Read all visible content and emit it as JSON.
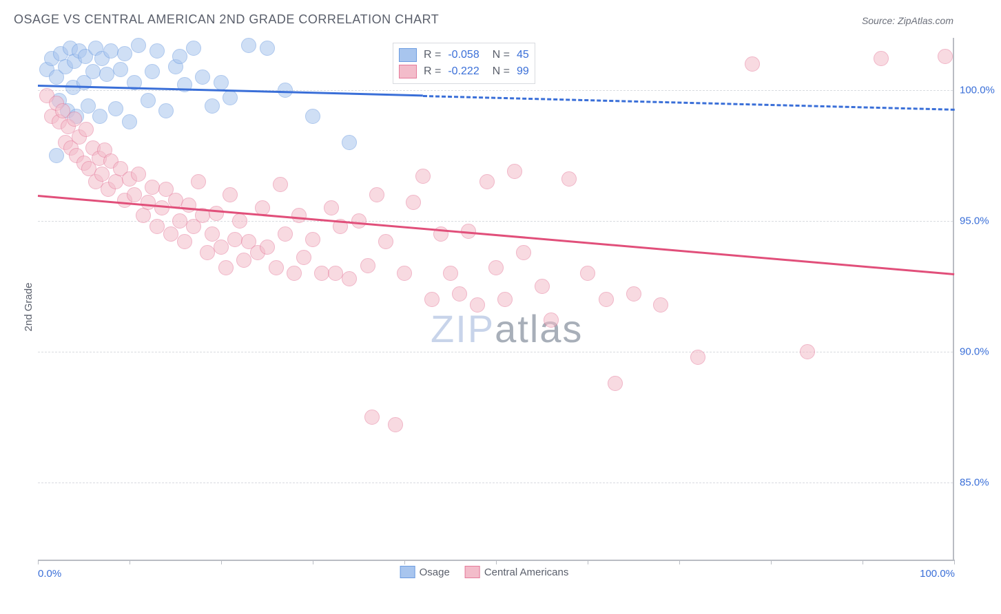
{
  "title": "OSAGE VS CENTRAL AMERICAN 2ND GRADE CORRELATION CHART",
  "source": "Source: ZipAtlas.com",
  "ylabel": "2nd Grade",
  "watermark_a": "ZIP",
  "watermark_b": "atlas",
  "chart": {
    "type": "scatter",
    "xlim": [
      0,
      100
    ],
    "ylim": [
      82,
      102
    ],
    "y_ticks": [
      85,
      90,
      95,
      100
    ],
    "y_tick_labels": [
      "85.0%",
      "90.0%",
      "95.0%",
      "100.0%"
    ],
    "x_tick_positions": [
      0,
      10,
      20,
      30,
      40,
      50,
      60,
      70,
      80,
      90,
      100
    ],
    "x_start_label": "0.0%",
    "x_end_label": "100.0%",
    "background_color": "#ffffff",
    "grid_color": "#d8dadf",
    "axis_color": "#b9bcc3",
    "series": [
      {
        "name": "Osage",
        "color_fill": "#a8c5ee",
        "color_stroke": "#6b9be0",
        "fill_opacity": 0.55,
        "marker_radius": 10,
        "R": "-0.058",
        "N": "45",
        "trend": {
          "y_at_x0": 100.2,
          "y_at_x100": 99.3,
          "solid_until_x": 42,
          "line_width": 3,
          "line_color": "#3a6fd8"
        },
        "points": [
          [
            1,
            100.8
          ],
          [
            1.5,
            101.2
          ],
          [
            2,
            100.5
          ],
          [
            2.3,
            99.6
          ],
          [
            2.5,
            101.4
          ],
          [
            3,
            100.9
          ],
          [
            3.2,
            99.2
          ],
          [
            3.5,
            101.6
          ],
          [
            3.8,
            100.1
          ],
          [
            4,
            101.1
          ],
          [
            4.2,
            99.0
          ],
          [
            4.5,
            101.5
          ],
          [
            5,
            100.3
          ],
          [
            5.2,
            101.3
          ],
          [
            5.5,
            99.4
          ],
          [
            6,
            100.7
          ],
          [
            6.3,
            101.6
          ],
          [
            6.8,
            99.0
          ],
          [
            7,
            101.2
          ],
          [
            7.5,
            100.6
          ],
          [
            8,
            101.5
          ],
          [
            8.5,
            99.3
          ],
          [
            9,
            100.8
          ],
          [
            9.5,
            101.4
          ],
          [
            10,
            98.8
          ],
          [
            10.5,
            100.3
          ],
          [
            11,
            101.7
          ],
          [
            12,
            99.6
          ],
          [
            12.5,
            100.7
          ],
          [
            13,
            101.5
          ],
          [
            14,
            99.2
          ],
          [
            15,
            100.9
          ],
          [
            15.5,
            101.3
          ],
          [
            16,
            100.2
          ],
          [
            17,
            101.6
          ],
          [
            18,
            100.5
          ],
          [
            19,
            99.4
          ],
          [
            20,
            100.3
          ],
          [
            21,
            99.7
          ],
          [
            23,
            101.7
          ],
          [
            25,
            101.6
          ],
          [
            27,
            100.0
          ],
          [
            30,
            99.0
          ],
          [
            34,
            98.0
          ],
          [
            2.0,
            97.5
          ]
        ]
      },
      {
        "name": "Central Americans",
        "color_fill": "#f3bcca",
        "color_stroke": "#e57a9a",
        "fill_opacity": 0.55,
        "marker_radius": 10,
        "R": "-0.222",
        "N": "99",
        "trend": {
          "y_at_x0": 96.0,
          "y_at_x100": 93.0,
          "solid_until_x": 100,
          "line_width": 3,
          "line_color": "#e14f7a"
        },
        "points": [
          [
            1,
            99.8
          ],
          [
            1.5,
            99.0
          ],
          [
            2,
            99.5
          ],
          [
            2.3,
            98.8
          ],
          [
            2.7,
            99.2
          ],
          [
            3,
            98.0
          ],
          [
            3.3,
            98.6
          ],
          [
            3.6,
            97.8
          ],
          [
            4,
            98.9
          ],
          [
            4.2,
            97.5
          ],
          [
            4.5,
            98.2
          ],
          [
            5,
            97.2
          ],
          [
            5.3,
            98.5
          ],
          [
            5.6,
            97.0
          ],
          [
            6,
            97.8
          ],
          [
            6.3,
            96.5
          ],
          [
            6.7,
            97.4
          ],
          [
            7,
            96.8
          ],
          [
            7.3,
            97.7
          ],
          [
            7.7,
            96.2
          ],
          [
            8,
            97.3
          ],
          [
            8.5,
            96.5
          ],
          [
            9,
            97.0
          ],
          [
            9.5,
            95.8
          ],
          [
            10,
            96.6
          ],
          [
            10.5,
            96.0
          ],
          [
            11,
            96.8
          ],
          [
            11.5,
            95.2
          ],
          [
            12,
            95.7
          ],
          [
            12.5,
            96.3
          ],
          [
            13,
            94.8
          ],
          [
            13.5,
            95.5
          ],
          [
            14,
            96.2
          ],
          [
            14.5,
            94.5
          ],
          [
            15,
            95.8
          ],
          [
            15.5,
            95.0
          ],
          [
            16,
            94.2
          ],
          [
            16.5,
            95.6
          ],
          [
            17,
            94.8
          ],
          [
            17.5,
            96.5
          ],
          [
            18,
            95.2
          ],
          [
            18.5,
            93.8
          ],
          [
            19,
            94.5
          ],
          [
            19.5,
            95.3
          ],
          [
            20,
            94.0
          ],
          [
            20.5,
            93.2
          ],
          [
            21,
            96.0
          ],
          [
            21.5,
            94.3
          ],
          [
            22,
            95.0
          ],
          [
            22.5,
            93.5
          ],
          [
            23,
            94.2
          ],
          [
            24,
            93.8
          ],
          [
            24.5,
            95.5
          ],
          [
            25,
            94.0
          ],
          [
            26,
            93.2
          ],
          [
            26.5,
            96.4
          ],
          [
            27,
            94.5
          ],
          [
            28,
            93.0
          ],
          [
            28.5,
            95.2
          ],
          [
            29,
            93.6
          ],
          [
            30,
            94.3
          ],
          [
            31,
            93.0
          ],
          [
            32,
            95.5
          ],
          [
            32.5,
            93.0
          ],
          [
            33,
            94.8
          ],
          [
            34,
            92.8
          ],
          [
            35,
            95.0
          ],
          [
            36,
            93.3
          ],
          [
            36.5,
            87.5
          ],
          [
            37,
            96.0
          ],
          [
            38,
            94.2
          ],
          [
            39,
            87.2
          ],
          [
            40,
            93.0
          ],
          [
            41,
            95.7
          ],
          [
            42,
            96.7
          ],
          [
            43,
            92.0
          ],
          [
            44,
            94.5
          ],
          [
            45,
            93.0
          ],
          [
            46,
            92.2
          ],
          [
            47,
            94.6
          ],
          [
            48,
            91.8
          ],
          [
            49,
            96.5
          ],
          [
            50,
            93.2
          ],
          [
            51,
            92.0
          ],
          [
            52,
            96.9
          ],
          [
            53,
            93.8
          ],
          [
            55,
            92.5
          ],
          [
            56,
            91.2
          ],
          [
            58,
            96.6
          ],
          [
            60,
            93.0
          ],
          [
            62,
            92.0
          ],
          [
            63,
            88.8
          ],
          [
            65,
            92.2
          ],
          [
            68,
            91.8
          ],
          [
            72,
            89.8
          ],
          [
            78,
            101.0
          ],
          [
            84,
            90.0
          ],
          [
            92,
            101.2
          ],
          [
            99,
            101.3
          ]
        ]
      }
    ]
  },
  "legend_bottom": [
    {
      "label": "Osage",
      "fill": "#a8c5ee",
      "stroke": "#6b9be0"
    },
    {
      "label": "Central Americans",
      "fill": "#f3bcca",
      "stroke": "#e57a9a"
    }
  ]
}
